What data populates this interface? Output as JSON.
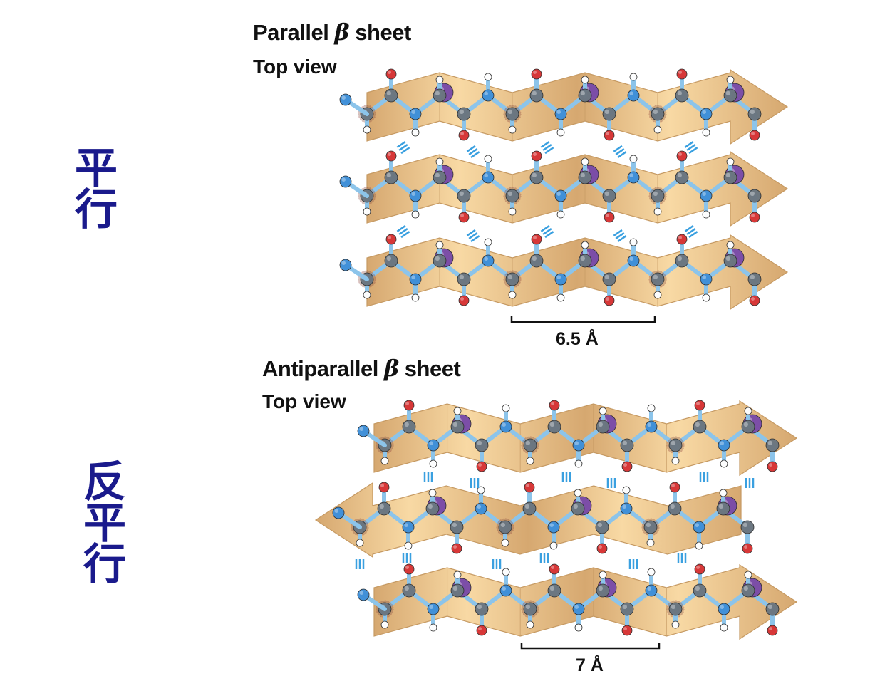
{
  "side_labels": {
    "parallel": [
      "平",
      "行"
    ],
    "antiparallel": [
      "反",
      "平",
      "行"
    ]
  },
  "parallel_panel": {
    "title_prefix": "Parallel ",
    "title_beta": "β",
    "title_suffix": " sheet",
    "subtitle": "Top view",
    "distance": "6.5 Å",
    "strand_directions": [
      "right",
      "right",
      "right"
    ]
  },
  "antiparallel_panel": {
    "title_prefix": "Antiparallel ",
    "title_beta": "β",
    "title_suffix": " sheet",
    "subtitle": "Top view",
    "distance": "7 Å",
    "strand_directions": [
      "right",
      "left",
      "right"
    ]
  },
  "colors": {
    "ribbon_light": "#f8d9a4",
    "ribbon_dark": "#d6a870",
    "ribbon_edge": "#c69a63",
    "carbon": "#6b7680",
    "nitrogen": "#3f8fd8",
    "oxygen": "#d83535",
    "hydrogen": "#ffffff",
    "side_chain": "#7a4ca8",
    "bond": "#8cc4ea",
    "hbond": "#3aa0e0",
    "cjk_text": "#1a1a8c"
  }
}
